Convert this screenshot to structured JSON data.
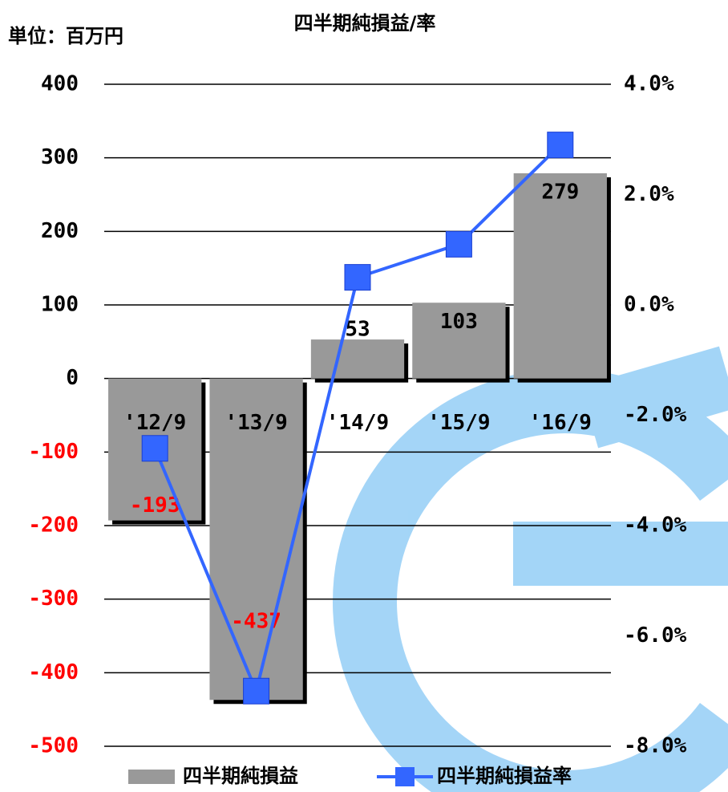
{
  "chart_data": {
    "type": "bar_line",
    "title": "四半期純損益/率",
    "unit_label": "単位：百万円",
    "categories": [
      "'12/9",
      "'13/9",
      "'14/9",
      "'15/9",
      "'16/9"
    ],
    "series": [
      {
        "name": "四半期純損益",
        "type": "bar",
        "color": "#999999",
        "values": [
          -193,
          -437,
          53,
          103,
          279
        ]
      },
      {
        "name": "四半期純損益率",
        "type": "line",
        "axis": "y2",
        "color": "#3366ff",
        "values": [
          -2.6,
          -7.0,
          0.5,
          1.1,
          2.9
        ]
      }
    ],
    "ylim": [
      -500,
      400
    ],
    "yticks": [
      -500,
      -400,
      -300,
      -200,
      -100,
      0,
      100,
      200,
      300,
      400
    ],
    "y2lim": [
      -8,
      4
    ],
    "y2ticks": [
      {
        "value": -8,
        "label": "-8.0%"
      },
      {
        "value": -6,
        "label": "-6.0%"
      },
      {
        "value": -4,
        "label": "-4.0%"
      },
      {
        "value": -2,
        "label": "-2.0%"
      },
      {
        "value": 0,
        "label": "0.0%"
      },
      {
        "value": 2,
        "label": "2.0%"
      },
      {
        "value": 4,
        "label": "4.0%"
      }
    ],
    "negative_color": "#ff0000",
    "grid": true,
    "legend": "bottom"
  }
}
